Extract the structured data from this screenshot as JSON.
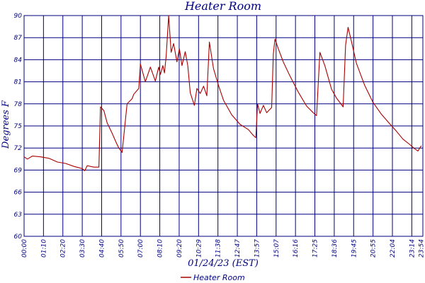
{
  "chart_data": {
    "type": "line",
    "title": "Heater Room",
    "xlabel": "01/24/23 (EST)",
    "ylabel": "Degrees F",
    "ylim": [
      60,
      90
    ],
    "yticks": [
      60,
      63,
      66,
      69,
      72,
      75,
      78,
      81,
      84,
      87,
      90
    ],
    "xlim": [
      0,
      24
    ],
    "xtick_labels": [
      "00:00",
      "01:10",
      "02:20",
      "03:30",
      "04:40",
      "05:50",
      "07:00",
      "08:10",
      "09:20",
      "10:29",
      "11:38",
      "12:47",
      "13:57",
      "15:07",
      "16:16",
      "17:25",
      "18:36",
      "19:45",
      "20:55",
      "22:04",
      "23:14",
      "23:54"
    ],
    "grid": true,
    "legend_position": "bottom-center",
    "colors": {
      "series": "#aa0000",
      "grid": "#000080",
      "text": "#000080"
    },
    "series": [
      {
        "name": "Heater Room",
        "x": [
          0,
          0.2,
          0.5,
          1.0,
          1.5,
          2.0,
          2.5,
          3.0,
          3.5,
          3.65,
          3.8,
          4.2,
          4.5,
          4.6,
          4.8,
          5.0,
          5.3,
          5.55,
          5.7,
          5.9,
          6.2,
          6.5,
          6.6,
          6.9,
          7.0,
          7.3,
          7.6,
          7.9,
          8.1,
          8.2,
          8.35,
          8.45,
          8.55,
          8.7,
          8.85,
          9.0,
          9.2,
          9.35,
          9.5,
          9.7,
          9.85,
          10.0,
          10.25,
          10.4,
          10.6,
          10.8,
          11.0,
          11.15,
          11.4,
          11.7,
          12.0,
          12.5,
          13.0,
          13.5,
          13.8,
          13.95,
          14.05,
          14.2,
          14.4,
          14.6,
          14.9,
          15.0,
          15.1,
          15.3,
          15.6,
          16.0,
          16.5,
          17.0,
          17.4,
          17.6,
          17.8,
          18.1,
          18.5,
          18.8,
          19.2,
          19.35,
          19.5,
          19.7,
          20.0,
          20.5,
          21.0,
          21.5,
          22.0,
          22.4,
          22.8,
          23.2,
          23.5,
          23.7,
          23.9
        ],
        "y": [
          70.8,
          70.5,
          70.9,
          70.8,
          70.6,
          70.1,
          69.9,
          69.5,
          69.2,
          68.9,
          69.6,
          69.4,
          69.4,
          77.6,
          77.1,
          75.4,
          74.0,
          72.7,
          72.0,
          71.4,
          78.0,
          78.7,
          79.3,
          80.1,
          83.4,
          81.0,
          83.0,
          81.1,
          83.0,
          82.0,
          83.2,
          82.2,
          84.5,
          90.0,
          85.0,
          86.2,
          83.7,
          85.5,
          83.2,
          85.1,
          83.2,
          79.5,
          77.8,
          80.1,
          79.4,
          80.4,
          79.1,
          86.4,
          82.8,
          80.5,
          78.5,
          76.5,
          75.2,
          74.5,
          73.7,
          73.4,
          78.0,
          76.7,
          77.8,
          76.8,
          77.5,
          84.8,
          86.8,
          85.5,
          83.7,
          81.8,
          79.6,
          77.7,
          76.8,
          76.4,
          85.0,
          83.2,
          80.0,
          78.8,
          77.6,
          86.0,
          88.4,
          86.5,
          83.5,
          80.5,
          78.2,
          76.6,
          75.3,
          74.3,
          73.2,
          72.5,
          71.9,
          71.6,
          72.3
        ]
      }
    ]
  }
}
